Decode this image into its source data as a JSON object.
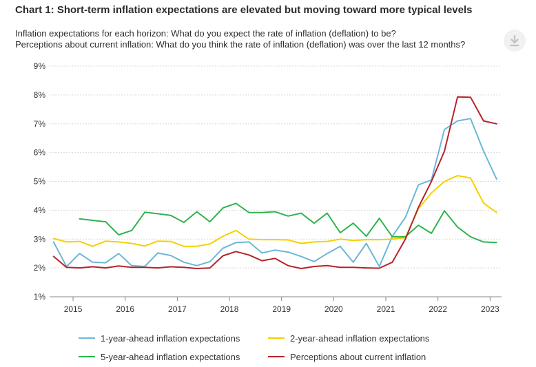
{
  "chart_data": {
    "type": "line",
    "title": "Chart 1: Short-term inflation expectations are elevated but moving toward more typical levels",
    "subtitle_lines": [
      "Inflation expectations for each horizon: What do you expect the rate of inflation (deflation) to be?",
      "Perceptions about current inflation: What do you think the rate of inflation (deflation) was over the last 12 months?"
    ],
    "ylim": [
      1,
      9
    ],
    "y_ticks": [
      1,
      2,
      3,
      4,
      5,
      6,
      7,
      8,
      9
    ],
    "y_tick_labels": [
      "1%",
      "2%",
      "3%",
      "4%",
      "5%",
      "6%",
      "7%",
      "8%",
      "9%"
    ],
    "xlim": [
      2014.55,
      2023.22
    ],
    "x_ticks": [
      2015,
      2016,
      2017,
      2018,
      2019,
      2020,
      2021,
      2022,
      2023
    ],
    "x_tick_labels": [
      "2015",
      "2016",
      "2017",
      "2018",
      "2019",
      "2020",
      "2021",
      "2022",
      "2023"
    ],
    "grid": "horizontal",
    "legend_position": "bottom",
    "x": [
      2014.625,
      2014.875,
      2015.125,
      2015.375,
      2015.625,
      2015.875,
      2016.125,
      2016.375,
      2016.625,
      2016.875,
      2017.125,
      2017.375,
      2017.625,
      2017.875,
      2018.125,
      2018.375,
      2018.625,
      2018.875,
      2019.125,
      2019.375,
      2019.625,
      2019.875,
      2020.125,
      2020.375,
      2020.625,
      2020.875,
      2021.125,
      2021.375,
      2021.625,
      2021.875,
      2022.125,
      2022.375,
      2022.625,
      2022.875,
      2023.125
    ],
    "series": [
      {
        "name": "1-year-ahead inflation expectations",
        "color": "#6ab7d8",
        "values": [
          2.9,
          2.05,
          2.5,
          2.2,
          2.18,
          2.5,
          2.08,
          2.05,
          2.52,
          2.43,
          2.2,
          2.08,
          2.22,
          2.68,
          2.88,
          2.9,
          2.52,
          2.62,
          2.55,
          2.4,
          2.22,
          2.5,
          2.75,
          2.2,
          2.85,
          2.05,
          3.1,
          3.75,
          4.88,
          5.05,
          6.8,
          7.1,
          7.18,
          6.05,
          5.08
        ]
      },
      {
        "name": "2-year-ahead inflation expectations",
        "color": "#f5d000",
        "values": [
          3.02,
          2.9,
          2.92,
          2.75,
          2.93,
          2.9,
          2.85,
          2.76,
          2.93,
          2.92,
          2.75,
          2.75,
          2.83,
          3.1,
          3.3,
          3.0,
          2.98,
          2.98,
          2.97,
          2.85,
          2.9,
          2.92,
          3.0,
          2.95,
          2.98,
          2.98,
          3.0,
          3.05,
          4.05,
          4.6,
          5.0,
          5.2,
          5.12,
          4.25,
          3.92
        ]
      },
      {
        "name": "5-year-ahead inflation expectations",
        "color": "#2fb34f",
        "values": [
          null,
          null,
          3.7,
          3.65,
          3.6,
          3.15,
          3.3,
          3.93,
          3.88,
          3.82,
          3.58,
          3.95,
          3.6,
          4.08,
          4.24,
          3.92,
          3.92,
          3.95,
          3.8,
          3.9,
          3.55,
          3.9,
          3.22,
          3.55,
          3.1,
          3.72,
          3.08,
          3.08,
          3.48,
          3.2,
          3.98,
          3.42,
          3.08,
          2.9,
          2.88
        ]
      },
      {
        "name": "Perceptions about current inflation",
        "color": "#b5232a",
        "values": [
          2.4,
          2.02,
          2.0,
          2.04,
          2.0,
          2.07,
          2.02,
          2.02,
          2.0,
          2.04,
          2.02,
          1.98,
          2.0,
          2.42,
          2.57,
          2.45,
          2.25,
          2.33,
          2.08,
          1.98,
          2.05,
          2.08,
          2.02,
          2.02,
          2.0,
          1.99,
          2.2,
          3.0,
          4.1,
          5.0,
          6.05,
          7.93,
          7.92,
          7.1,
          7.0
        ]
      }
    ]
  }
}
